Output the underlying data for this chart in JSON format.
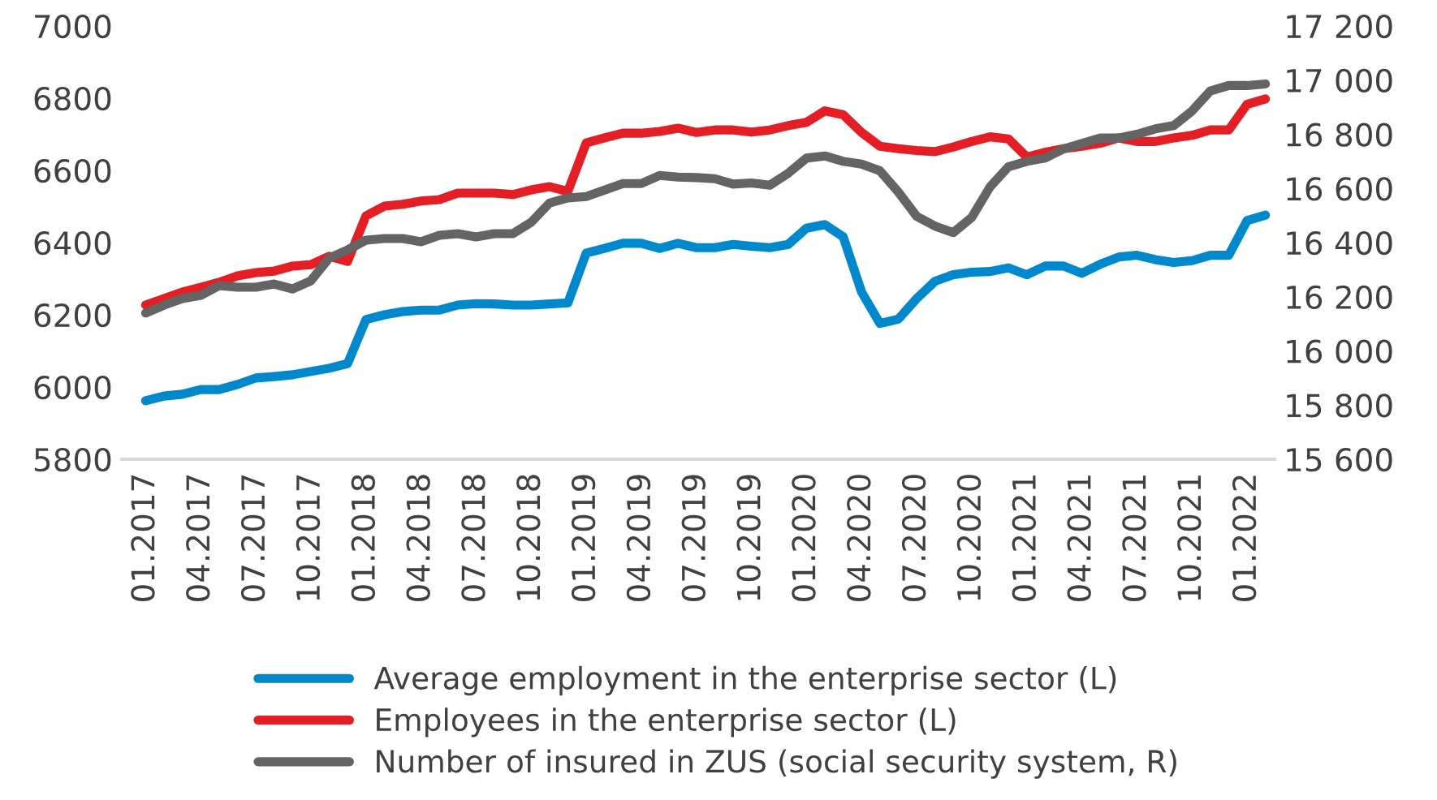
{
  "chart_data": {
    "type": "line",
    "categories": [
      "01.2017",
      null,
      null,
      "04.2017",
      null,
      null,
      "07.2017",
      null,
      null,
      "10.2017",
      null,
      null,
      "01.2018",
      null,
      null,
      "04.2018",
      null,
      null,
      "07.2018",
      null,
      null,
      "10.2018",
      null,
      null,
      "01.2019",
      null,
      null,
      "04.2019",
      null,
      null,
      "07.2019",
      null,
      null,
      "10.2019",
      null,
      null,
      "01.2020",
      null,
      null,
      "04.2020",
      null,
      null,
      "07.2020",
      null,
      null,
      "10.2020",
      null,
      null,
      "01.2021",
      null,
      null,
      "04.2021",
      null,
      null,
      "07.2021",
      null,
      null,
      "10.2021",
      null,
      null,
      "01.2022",
      null
    ],
    "series": [
      {
        "name": "Average employment in the enterprise sector (L)",
        "color": "#0088cc",
        "values": [
          5962,
          5975,
          5980,
          5993,
          5993,
          6007,
          6025,
          6029,
          6034,
          6043,
          6052,
          6065,
          6187,
          6200,
          6209,
          6213,
          6213,
          6227,
          6231,
          6230,
          6227,
          6227,
          6230,
          6233,
          6371,
          6384,
          6398,
          6398,
          6384,
          6398,
          6386,
          6386,
          6395,
          6390,
          6386,
          6395,
          6440,
          6450,
          6416,
          6263,
          6176,
          6188,
          6245,
          6293,
          6311,
          6318,
          6320,
          6330,
          6311,
          6335,
          6335,
          6315,
          6340,
          6360,
          6365,
          6353,
          6345,
          6350,
          6365,
          6365,
          6461,
          6476
        ]
      },
      {
        "name": "Employees in the enterprise sector (L)",
        "color": "#e31e24",
        "values": [
          6227,
          6245,
          6263,
          6276,
          6290,
          6308,
          6317,
          6321,
          6335,
          6339,
          6362,
          6348,
          6474,
          6501,
          6506,
          6515,
          6519,
          6537,
          6537,
          6537,
          6533,
          6546,
          6555,
          6542,
          6676,
          6690,
          6703,
          6703,
          6708,
          6717,
          6705,
          6712,
          6712,
          6706,
          6712,
          6724,
          6733,
          6765,
          6754,
          6705,
          6667,
          6660,
          6655,
          6652,
          6665,
          6680,
          6693,
          6687,
          6637,
          6650,
          6660,
          6667,
          6675,
          6690,
          6680,
          6680,
          6690,
          6697,
          6712,
          6712,
          6783,
          6798
        ]
      },
      {
        "name": "Number of insured in ZUS (social security system, R)",
        "color": "#646464",
        "axis": "y2",
        "values": [
          16140,
          16169,
          16193,
          16205,
          16241,
          16235,
          16235,
          16247,
          16229,
          16259,
          16343,
          16373,
          16409,
          16415,
          16415,
          16403,
          16427,
          16433,
          16421,
          16433,
          16433,
          16475,
          16546,
          16565,
          16570,
          16594,
          16618,
          16618,
          16648,
          16642,
          16640,
          16636,
          16616,
          16620,
          16612,
          16656,
          16712,
          16720,
          16700,
          16690,
          16665,
          16587,
          16497,
          16461,
          16437,
          16493,
          16606,
          16680,
          16700,
          16712,
          16746,
          16766,
          16786,
          16786,
          16800,
          16820,
          16832,
          16886,
          16960,
          16980,
          16980,
          16986
        ]
      }
    ],
    "ylim": [
      5800,
      7000
    ],
    "yticks": [
      5800,
      6000,
      6200,
      6400,
      6600,
      6800,
      7000
    ],
    "y2lim": [
      15600,
      17200
    ],
    "y2ticks": [
      {
        "value": 15600,
        "label": "15 600"
      },
      {
        "value": 15800,
        "label": "15 800"
      },
      {
        "value": 16000,
        "label": "16 000"
      },
      {
        "value": 16200,
        "label": "16 200"
      },
      {
        "value": 16400,
        "label": "16 400"
      },
      {
        "value": 16600,
        "label": "16 600"
      },
      {
        "value": 16800,
        "label": "16 800"
      },
      {
        "value": 17000,
        "label": "17 000"
      },
      {
        "value": 17200,
        "label": "17 200"
      }
    ],
    "legend": "bottom"
  }
}
